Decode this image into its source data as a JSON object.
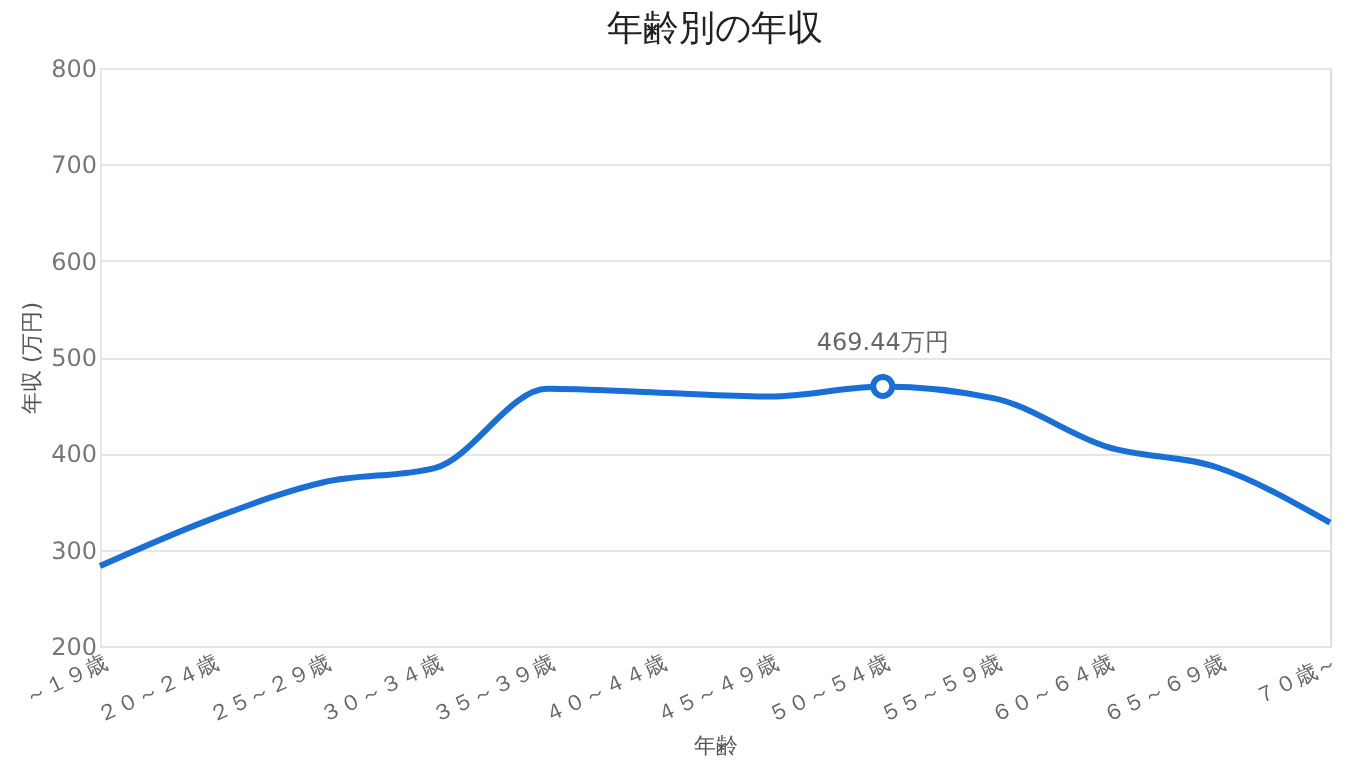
{
  "chart_data": {
    "type": "line",
    "title": "年齢別の年収",
    "xlabel": "年齢",
    "ylabel": "年収 (万円)",
    "categories": [
      "～１９歳",
      "２０～２４歳",
      "２５～２９歳",
      "３０～３４歳",
      "３５～３９歳",
      "４０～４４歳",
      "４５～４９歳",
      "５０～５４歳",
      "５５～５９歳",
      "６０～６４歳",
      "６５～６９歳",
      "７０歳～"
    ],
    "series": [
      {
        "color": "#1a6fd6",
        "values": [
          283,
          332,
          370,
          385,
          467,
          463,
          459,
          469.44,
          457,
          407,
          385,
          328
        ]
      }
    ],
    "ylim": [
      200,
      800
    ],
    "yticks": [
      200,
      300,
      400,
      500,
      600,
      700,
      800
    ],
    "grid": "y",
    "marker": "none",
    "line_style": "solid",
    "annotations": [
      {
        "text": "469.44万円",
        "x": "５０～５４歳",
        "y": 469.44
      }
    ]
  }
}
